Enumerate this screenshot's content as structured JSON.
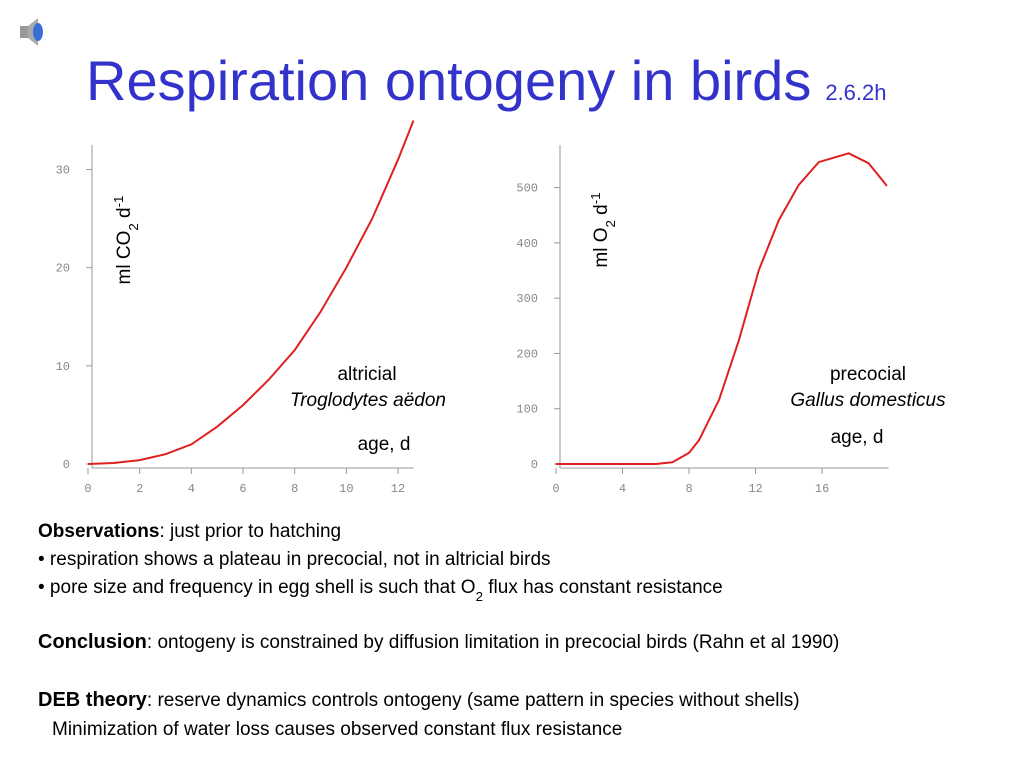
{
  "slide": {
    "title": "Respiration ontogeny in birds",
    "section": "2.6.2h",
    "observations": {
      "heading": "Observations",
      "text": ": just prior to hatching",
      "bullets": [
        [
          "• respiration shows a plateau in precocial, not in altricial birds"
        ],
        [
          "• pore size and frequency in egg shell is such that O",
          "2",
          " flux has constant resistance"
        ]
      ]
    },
    "conclusion": {
      "heading": "Conclusion",
      "text": ": ontogeny is constrained by diffusion limitation in precocial birds (Rahn et al 1990)"
    },
    "deb": {
      "heading": "DEB theory",
      "text": ": reserve dynamics controls ontogeny (same pattern in species without shells)",
      "line2": "Minimization of water loss causes observed constant flux resistance"
    }
  },
  "chart_data": [
    {
      "type": "line",
      "ylabel": [
        "ml CO",
        "2",
        " d",
        "-1"
      ],
      "xlabel": "age, d",
      "annotations": [
        "altricial",
        "Troglodytes aëdon"
      ],
      "x": [
        0,
        1,
        2,
        3,
        4,
        5,
        6,
        7,
        8,
        9,
        10,
        11,
        12,
        12.6
      ],
      "series": [
        {
          "color": "#e02020",
          "values": [
            0,
            0.1,
            0.4,
            1,
            2,
            3.8,
            6,
            8.6,
            11.6,
            15.5,
            20,
            25,
            31,
            35
          ]
        }
      ],
      "xlim": [
        0,
        12.6
      ],
      "ylim": [
        0,
        32.5
      ],
      "xticks": [
        0,
        2,
        4,
        6,
        8,
        10,
        12
      ],
      "yticks": [
        0,
        10,
        20,
        30
      ]
    },
    {
      "type": "line",
      "ylabel": [
        "ml O",
        "2",
        " d",
        "-1"
      ],
      "xlabel": "age, d",
      "annotations": [
        "precocial",
        "Gallus domesticus"
      ],
      "x": [
        0,
        6,
        7,
        8,
        8.6,
        9.8,
        11,
        12.2,
        13.4,
        14.6,
        15.8,
        17.6,
        18.8,
        19.9
      ],
      "series": [
        {
          "color": "#e02020",
          "values": [
            0,
            0,
            3,
            20,
            43,
            116,
            224,
            351,
            441,
            505,
            546,
            562,
            544,
            503
          ]
        }
      ],
      "xlim": [
        0,
        20
      ],
      "ylim": [
        0,
        577
      ],
      "xticks": [
        0,
        4,
        8,
        12,
        16
      ],
      "yticks": [
        0,
        100,
        200,
        300,
        400,
        500
      ]
    }
  ]
}
